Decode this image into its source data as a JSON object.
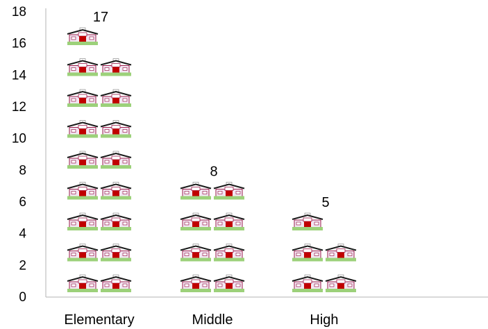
{
  "chart_data": {
    "type": "bar",
    "categories": [
      "Elementary",
      "Middle",
      "High"
    ],
    "values": [
      17,
      8,
      5
    ],
    "data_labels": [
      "17",
      "8",
      "5"
    ],
    "title": "",
    "xlabel": "",
    "ylabel": "",
    "ylim": [
      0,
      18
    ],
    "yticks": [
      0,
      2,
      4,
      6,
      8,
      10,
      12,
      14,
      16,
      18
    ],
    "grid": false,
    "legend": "none",
    "icon": "school-building-icon",
    "colors": {
      "roof": "#1a1a1a",
      "wall": "#f2e6f2",
      "trim": "#9b1b4b",
      "door": "#c00000",
      "lawn": "#9cd17a",
      "axis": "#b3b3b3"
    }
  }
}
